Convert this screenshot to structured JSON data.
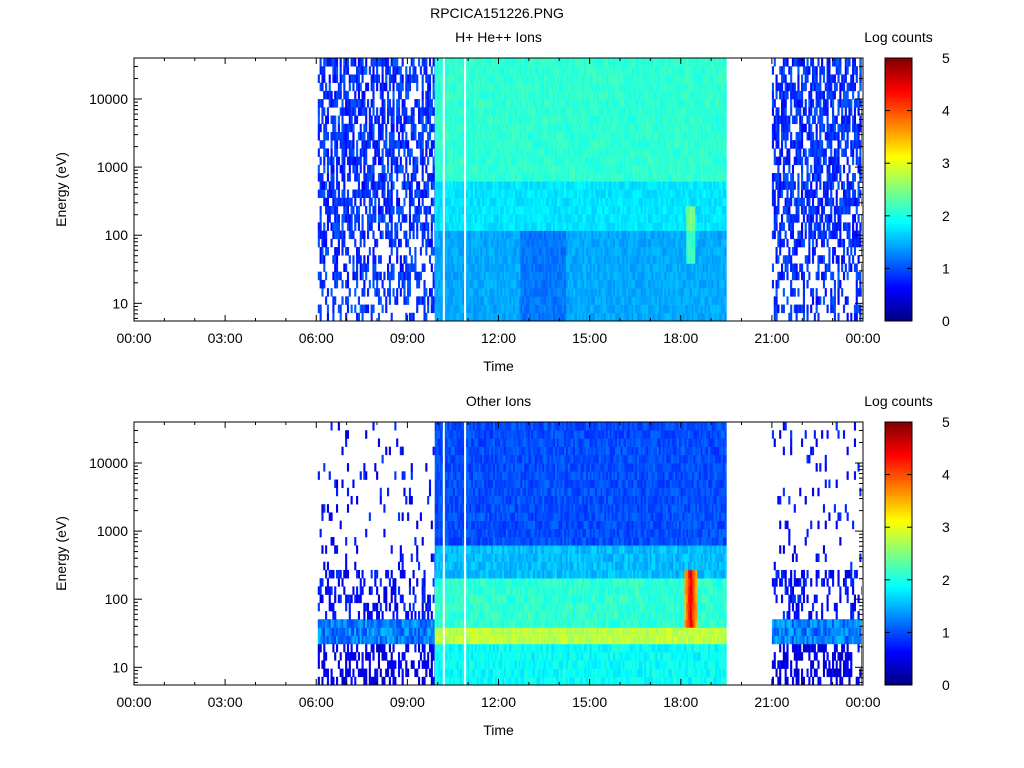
{
  "page": {
    "title": "RPCICA151226.PNG"
  },
  "colors": {
    "background": "#ffffff",
    "axis": "#000000",
    "colormap": [
      "#000080",
      "#0000ff",
      "#0080ff",
      "#00ffff",
      "#80ff80",
      "#ffff00",
      "#ff8000",
      "#ff0000",
      "#800000"
    ]
  },
  "chart_data": [
    {
      "type": "heatmap",
      "title": "H+ He++ Ions",
      "xlabel": "Time",
      "ylabel": "Energy (eV)",
      "x_ticks": [
        "00:00",
        "03:00",
        "06:00",
        "09:00",
        "12:00",
        "15:00",
        "18:00",
        "21:00",
        "00:00"
      ],
      "xlim_hours": [
        0,
        24
      ],
      "y_scale": "log",
      "y_ticks": [
        "10",
        "100",
        "1000",
        "10000"
      ],
      "ylim": [
        5.5,
        40000
      ],
      "colorbar": {
        "label": "Log counts",
        "range": [
          0,
          5
        ],
        "ticks": [
          "0",
          "1",
          "2",
          "3",
          "4",
          "5"
        ]
      },
      "data_segments": [
        {
          "start_hour": 6.05,
          "end_hour": 9.9,
          "pattern": "sparse noise, log counts 0-1"
        },
        {
          "start_hour": 9.9,
          "end_hour": 19.5,
          "pattern": "continuous, log counts ~1.5-2.3 rising with energy"
        },
        {
          "start_hour": 21.0,
          "end_hour": 23.95,
          "pattern": "sparse noise, log counts 0-1"
        }
      ],
      "gaps_hours": [
        10.2,
        10.9
      ]
    },
    {
      "type": "heatmap",
      "title": "Other Ions",
      "xlabel": "Time",
      "ylabel": "Energy (eV)",
      "x_ticks": [
        "00:00",
        "03:00",
        "06:00",
        "09:00",
        "12:00",
        "15:00",
        "18:00",
        "21:00",
        "00:00"
      ],
      "xlim_hours": [
        0,
        24
      ],
      "y_scale": "log",
      "y_ticks": [
        "10",
        "100",
        "1000",
        "10000"
      ],
      "ylim": [
        5.5,
        40000
      ],
      "colorbar": {
        "label": "Log counts",
        "range": [
          0,
          5
        ],
        "ticks": [
          "0",
          "1",
          "2",
          "3",
          "4",
          "5"
        ]
      },
      "data_segments": [
        {
          "start_hour": 6.05,
          "end_hour": 9.9,
          "pattern": "sparse above 60 eV, band at 20-40 eV (log counts ~1)"
        },
        {
          "start_hour": 9.9,
          "end_hour": 19.5,
          "pattern": "continuous; low energy band ~30 eV with log counts ~3, high energies ~1"
        },
        {
          "start_hour": 21.0,
          "end_hour": 23.95,
          "pattern": "sparse above 60 eV, band at 20-40 eV (log counts ~1.5)"
        }
      ],
      "hotspot": {
        "hour": 18.3,
        "energy_range_eV": [
          35,
          250
        ],
        "max_log_counts": 4.5
      },
      "gaps_hours": [
        10.2,
        10.9
      ]
    }
  ]
}
